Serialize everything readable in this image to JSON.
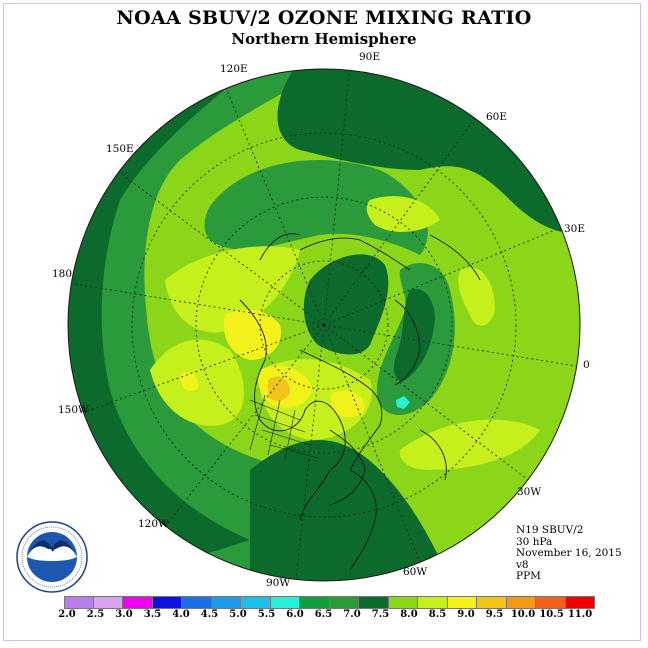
{
  "title": "NOAA SBUV/2 OZONE MIXING RATIO",
  "subtitle": "Northern Hemisphere",
  "longitude_labels": [
    "90E",
    "60E",
    "30E",
    "0",
    "30W",
    "60W",
    "90W",
    "120W",
    "150W",
    "180",
    "150E",
    "120E"
  ],
  "info": {
    "satellite": "N19 SBUV/2",
    "pressure": "30 hPa",
    "date": "November 16, 2015",
    "version": "v8",
    "units": "PPM"
  },
  "logo": {
    "name": "NOAA",
    "ring_text": "NATIONAL OCEANIC AND ATMOSPHERIC ADMINISTRATION · U.S. DEPARTMENT OF COMMERCE"
  },
  "colorbar": {
    "ticks": [
      "2.0",
      "2.5",
      "3.0",
      "3.5",
      "4.0",
      "4.5",
      "5.0",
      "5.5",
      "6.0",
      "6.5",
      "7.0",
      "7.5",
      "8.0",
      "8.5",
      "9.0",
      "9.5",
      "10.0",
      "10.5",
      "11.0"
    ],
    "colors": [
      "#b57ee8",
      "#d9a3f0",
      "#f000f0",
      "#1010e0",
      "#1a6ee6",
      "#1f9ae8",
      "#1ebfe6",
      "#28f0d8",
      "#109e3e",
      "#2a9a3a",
      "#0c6b2c",
      "#8cd61a",
      "#c6f01c",
      "#f2f21a",
      "#f2c41a",
      "#f29a18",
      "#f2601a",
      "#f00000",
      "#8a5a3a"
    ]
  },
  "map_colors": {
    "dark_green": "#0c6b2c",
    "medium_green": "#2a9a3a",
    "yellow_green": "#8cd61a",
    "lime": "#c6f01c",
    "yellow": "#f2f21a",
    "orange": "#f2c41a",
    "cyan": "#28f0d8"
  }
}
